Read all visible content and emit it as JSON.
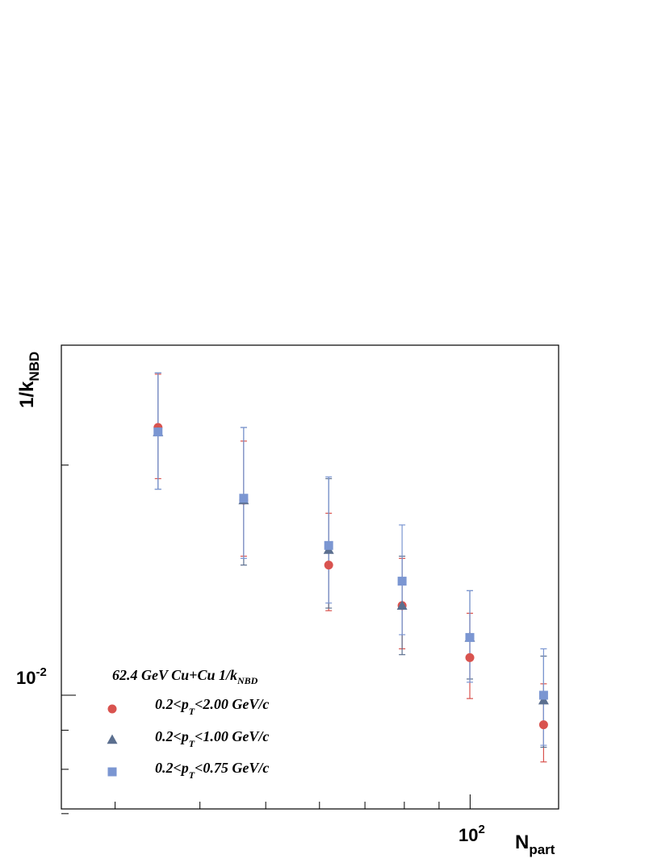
{
  "chart_data": {
    "type": "scatter",
    "title": "",
    "xlabel": {
      "main": "N",
      "sub": "part"
    },
    "ylabel": {
      "main": "1/k",
      "sub": "NBD"
    },
    "x_scale": "log",
    "y_scale": "log",
    "xlim": [
      25,
      135
    ],
    "ylim": [
      0.0071,
      0.0287
    ],
    "x_tick_labels": [
      {
        "value": 100,
        "base": "10",
        "exp": "2"
      }
    ],
    "y_tick_labels": [
      {
        "value": 0.01,
        "base": "10",
        "exp": "-2"
      }
    ],
    "grid": false,
    "legend": {
      "placement": "bottom-left",
      "header": {
        "main": "62.4 GeV Cu+Cu 1/k",
        "sub": "NBD"
      },
      "entries": [
        {
          "pre": "0.2<p",
          "sub": "T",
          "post": "<2.00 GeV/c",
          "marker": "circle",
          "color": "#d9534f"
        },
        {
          "pre": "0.2<p",
          "sub": "T",
          "post": "<1.00 GeV/c",
          "marker": "triangle",
          "color": "#5b6f8f"
        },
        {
          "pre": "0.2<p",
          "sub": "T",
          "post": "<0.75 GeV/c",
          "marker": "square",
          "color": "#7b96d2"
        }
      ]
    },
    "series": [
      {
        "marker": "circle",
        "color": "#d9534f",
        "x": [
          34.7,
          46.4,
          61.9,
          79.4,
          99.9,
          128.3
        ],
        "y": [
          0.0224,
          0.018,
          0.0148,
          0.0131,
          0.0112,
          0.00915
        ],
        "y_err_low": [
          0.0032,
          0.0028,
          0.0019,
          0.0016,
          0.0013,
          0.00097
        ],
        "y_err_high": [
          0.0039,
          0.0035,
          0.0025,
          0.002,
          0.0016,
          0.0012
        ]
      },
      {
        "marker": "triangle",
        "color": "#5b6f8f",
        "x": [
          34.7,
          46.4,
          61.9,
          79.4,
          99.9,
          128.3
        ],
        "y": [
          0.0221,
          0.018,
          0.0155,
          0.0131,
          0.0119,
          0.00985
        ],
        "y_err_low": [
          0.0035,
          0.0032,
          0.0025,
          0.0018,
          0.0014,
          0.0013
        ],
        "y_err_high": [
          0.0043,
          0.0044,
          0.0037,
          0.0021,
          0.0018,
          0.0014
        ]
      },
      {
        "marker": "square",
        "color": "#7b96d2",
        "x": [
          34.7,
          46.4,
          61.9,
          79.4,
          99.9,
          128.3
        ],
        "y": [
          0.0221,
          0.0181,
          0.0157,
          0.0141,
          0.0119,
          0.01
        ],
        "y_err_low": [
          0.0035,
          0.003,
          0.0025,
          0.0021,
          0.0015,
          0.0014
        ],
        "y_err_high": [
          0.0043,
          0.0043,
          0.0036,
          0.0026,
          0.0018,
          0.0015
        ]
      }
    ]
  }
}
